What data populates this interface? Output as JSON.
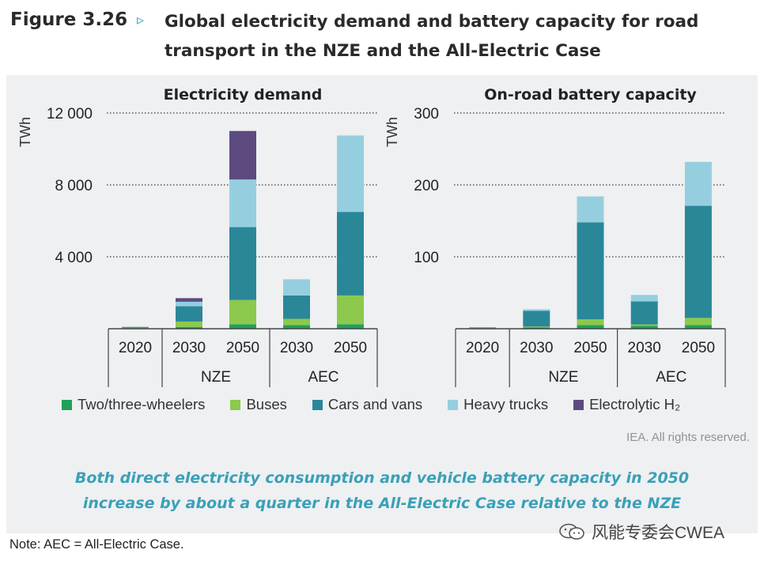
{
  "figure": {
    "label": "Figure 3.26",
    "title_line1": "Global electricity demand and battery capacity for road",
    "title_line2": "transport in the NZE and the All-Electric Case"
  },
  "colors": {
    "two_three_wheelers": "#21a05a",
    "buses": "#8cc94c",
    "cars_and_vans": "#2a8798",
    "heavy_trucks": "#95cfdf",
    "electrolytic_h2": "#5c4a7f",
    "caption": "#3aa0b8"
  },
  "chart_data": [
    {
      "type": "bar",
      "stacked": true,
      "title": "Electricity demand",
      "ylabel": "TWh",
      "ylim": [
        0,
        12000
      ],
      "yticks": [
        4000,
        8000,
        12000
      ],
      "ytick_labels": [
        "4 000",
        "8 000",
        "12 000"
      ],
      "categories": [
        "2020",
        "2030",
        "2050",
        "2030",
        "2050"
      ],
      "groups": [
        {
          "label": "",
          "categories": [
            "2020"
          ]
        },
        {
          "label": "NZE",
          "categories": [
            "2030",
            "2050"
          ]
        },
        {
          "label": "AEC",
          "categories": [
            "2030",
            "2050"
          ]
        }
      ],
      "series": [
        {
          "name": "Two/three-wheelers",
          "color_key": "two_three_wheelers",
          "values": [
            30,
            100,
            250,
            200,
            250
          ]
        },
        {
          "name": "Buses",
          "color_key": "buses",
          "values": [
            20,
            300,
            1350,
            350,
            1600
          ]
        },
        {
          "name": "Cars and vans",
          "color_key": "cars_and_vans",
          "values": [
            50,
            850,
            4050,
            1300,
            4650
          ]
        },
        {
          "name": "Heavy trucks",
          "color_key": "heavy_trucks",
          "values": [
            0,
            250,
            2650,
            900,
            4250
          ]
        },
        {
          "name": "Electrolytic H₂",
          "color_key": "electrolytic_h2",
          "values": [
            0,
            200,
            2700,
            0,
            0
          ]
        }
      ]
    },
    {
      "type": "bar",
      "stacked": true,
      "title": "On-road battery capacity",
      "ylabel": "TWh",
      "ylim": [
        0,
        300
      ],
      "yticks": [
        100,
        200,
        300
      ],
      "ytick_labels": [
        "100",
        "200",
        "300"
      ],
      "categories": [
        "2020",
        "2030",
        "2050",
        "2030",
        "2050"
      ],
      "groups": [
        {
          "label": "",
          "categories": [
            "2020"
          ]
        },
        {
          "label": "NZE",
          "categories": [
            "2030",
            "2050"
          ]
        },
        {
          "label": "AEC",
          "categories": [
            "2030",
            "2050"
          ]
        }
      ],
      "series": [
        {
          "name": "Two/three-wheelers",
          "color_key": "two_three_wheelers",
          "values": [
            0.5,
            2,
            5,
            4,
            5
          ]
        },
        {
          "name": "Buses",
          "color_key": "buses",
          "values": [
            0.3,
            1,
            8,
            2,
            10
          ]
        },
        {
          "name": "Cars and vans",
          "color_key": "cars_and_vans",
          "values": [
            1,
            22,
            135,
            32,
            156
          ]
        },
        {
          "name": "Heavy trucks",
          "color_key": "heavy_trucks",
          "values": [
            0,
            2,
            36,
            9,
            61
          ]
        },
        {
          "name": "Electrolytic H₂",
          "color_key": "electrolytic_h2",
          "values": [
            0,
            0,
            0,
            0,
            0
          ]
        }
      ]
    }
  ],
  "legend": {
    "items": [
      {
        "label": "Two/three-wheelers",
        "color_key": "two_three_wheelers"
      },
      {
        "label": "Buses",
        "color_key": "buses"
      },
      {
        "label": "Cars and vans",
        "color_key": "cars_and_vans"
      },
      {
        "label": "Heavy trucks",
        "color_key": "heavy_trucks"
      },
      {
        "label": "Electrolytic H₂",
        "color_key": "electrolytic_h2"
      }
    ]
  },
  "rights": "IEA. All rights reserved.",
  "caption": {
    "line1": "Both direct electricity consumption and vehicle battery capacity in 2050",
    "line2": "increase by about a quarter in the All-Electric Case relative to the NZE"
  },
  "note": "Note: AEC = All-Electric Case.",
  "watermark": {
    "text": "风能专委会CWEA",
    "icon": "wechat-icon"
  }
}
